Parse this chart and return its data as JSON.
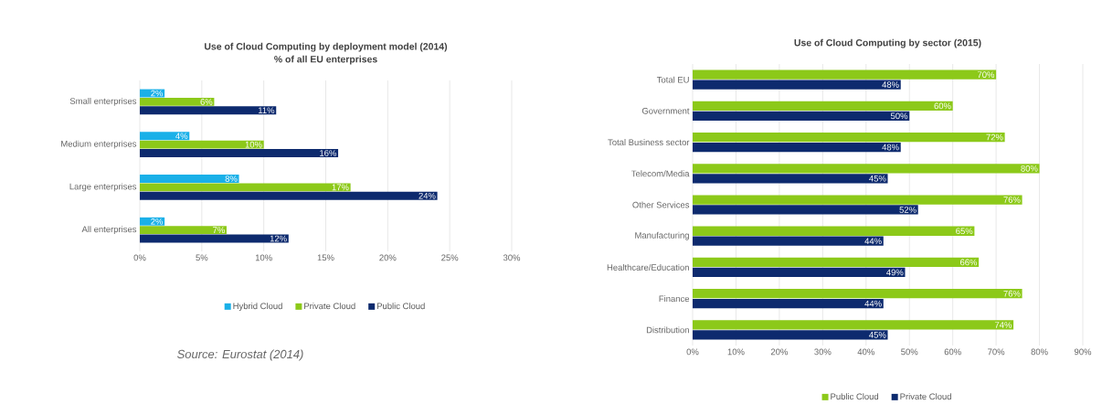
{
  "chart_data": [
    {
      "type": "bar",
      "orientation": "horizontal",
      "title": "Use of Cloud Computing by deployment model (2014)",
      "subtitle": "% of all EU enterprises",
      "categories": [
        "Small enterprises",
        "Medium enterprises",
        "Large enterprises",
        "All enterprises"
      ],
      "series": [
        {
          "name": "Hybrid Cloud",
          "color": "#1ab0e8",
          "values": [
            2,
            4,
            8,
            2
          ],
          "value_labels": [
            "2%",
            "4%",
            "8%",
            "2%"
          ]
        },
        {
          "name": "Private Cloud",
          "color": "#8cc919",
          "values": [
            6,
            10,
            17,
            7
          ],
          "value_labels": [
            "6%",
            "10%",
            "17%",
            "7%"
          ]
        },
        {
          "name": "Public Cloud",
          "color": "#0d2a6e",
          "values": [
            11,
            16,
            24,
            12
          ],
          "value_labels": [
            "11%",
            "16%",
            "24%",
            "12%"
          ]
        }
      ],
      "xlim": [
        0,
        30
      ],
      "xticks": [
        {
          "value": 0,
          "label": "0%"
        },
        {
          "value": 5,
          "label": "5%"
        },
        {
          "value": 10,
          "label": "10%"
        },
        {
          "value": 15,
          "label": "15%"
        },
        {
          "value": 20,
          "label": "20%"
        },
        {
          "value": 25,
          "label": "25%"
        },
        {
          "value": 30,
          "label": "30%"
        }
      ],
      "grid": "x",
      "legend": "bottom",
      "annotations": [
        "Source: Eurostat (2014)"
      ]
    },
    {
      "type": "bar",
      "orientation": "horizontal",
      "title": "Use of Cloud Computing by sector (2015)",
      "categories": [
        "Total EU",
        "Government",
        "Total Business sector",
        "Telecom/Media",
        "Other Services",
        "Manufacturing",
        "Healthcare/Education",
        "Finance",
        "Distribution"
      ],
      "series": [
        {
          "name": "Public Cloud",
          "color": "#8cc919",
          "values": [
            70,
            60,
            72,
            80,
            76,
            65,
            66,
            76,
            74
          ],
          "value_labels": [
            "70%",
            "60%",
            "72%",
            "80%",
            "76%",
            "65%",
            "66%",
            "76%",
            "74%"
          ]
        },
        {
          "name": "Private Cloud",
          "color": "#0d2a6e",
          "values": [
            48,
            50,
            48,
            45,
            52,
            44,
            49,
            44,
            45
          ],
          "value_labels": [
            "48%",
            "50%",
            "48%",
            "45%",
            "52%",
            "44%",
            "49%",
            "44%",
            "45%"
          ]
        }
      ],
      "xlim": [
        0,
        90
      ],
      "xticks": [
        {
          "value": 0,
          "label": "0%"
        },
        {
          "value": 10,
          "label": "10%"
        },
        {
          "value": 20,
          "label": "20%"
        },
        {
          "value": 30,
          "label": "30%"
        },
        {
          "value": 40,
          "label": "40%"
        },
        {
          "value": 50,
          "label": "50%"
        },
        {
          "value": 60,
          "label": "60%"
        },
        {
          "value": 70,
          "label": "70%"
        },
        {
          "value": 80,
          "label": "80%"
        },
        {
          "value": 90,
          "label": "90%"
        }
      ],
      "grid": "x",
      "legend": "bottom"
    }
  ]
}
